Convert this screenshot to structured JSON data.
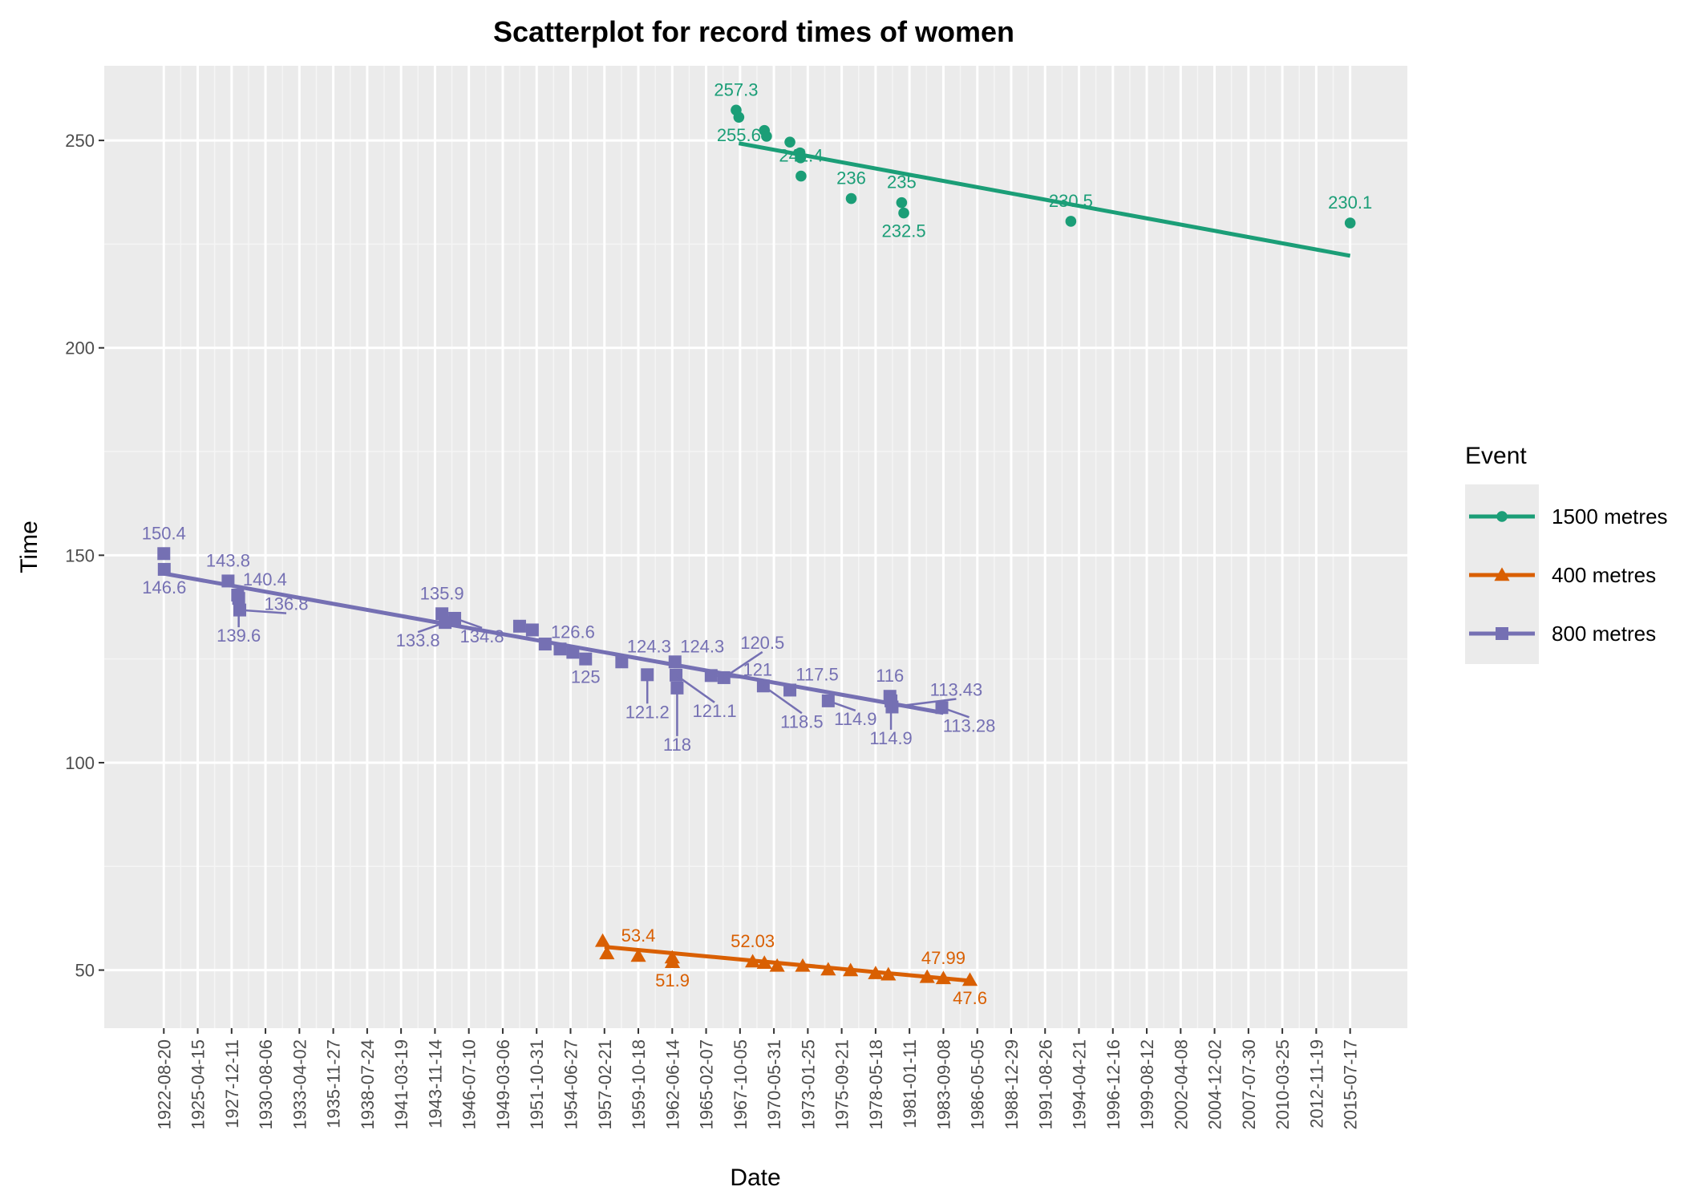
{
  "chart_data": {
    "type": "scatter",
    "title": "Scatterplot for record times of women",
    "xlabel": "Date",
    "ylabel": "Time",
    "y_ticks": [
      50,
      100,
      150,
      200,
      250
    ],
    "ylim": [
      36,
      268
    ],
    "x_ticks": [
      "1922-08-20",
      "1925-04-15",
      "1927-12-11",
      "1930-08-06",
      "1933-04-02",
      "1935-11-27",
      "1938-07-24",
      "1941-03-19",
      "1943-11-14",
      "1946-07-10",
      "1949-03-06",
      "1951-10-31",
      "1954-06-27",
      "1957-02-21",
      "1959-10-18",
      "1962-06-14",
      "1965-02-07",
      "1967-10-05",
      "1970-05-31",
      "1973-01-25",
      "1975-09-21",
      "1978-05-18",
      "1981-01-11",
      "1983-09-08",
      "1986-05-05",
      "1988-12-29",
      "1991-08-26",
      "1994-04-21",
      "1996-12-16",
      "1999-08-12",
      "2002-04-08",
      "2004-12-02",
      "2007-07-30",
      "2010-03-25",
      "2012-11-19",
      "2015-07-17"
    ],
    "xlim": [
      "1917-12-20",
      "2020-01-08"
    ],
    "legend": {
      "title": "Event",
      "position": "right"
    },
    "grid": true,
    "series": [
      {
        "name": "1500 metres",
        "color": "#1b9e77",
        "marker": "circle",
        "trend": [
          [
            "1967-09-01",
            249.3
          ],
          [
            "2015-07-17",
            222.2
          ]
        ],
        "points": [
          {
            "x": "1967-06-15",
            "y": 257.3,
            "label": "257.3"
          },
          {
            "x": "1967-09-01",
            "y": 255.6,
            "label": "255.6"
          },
          {
            "x": "1969-09-01",
            "y": 252.4
          },
          {
            "x": "1969-11-01",
            "y": 251.0
          },
          {
            "x": "1971-09-01",
            "y": 249.6
          },
          {
            "x": "1972-06-15",
            "y": 247.0
          },
          {
            "x": "1972-07-01",
            "y": 245.8
          },
          {
            "x": "1972-07-15",
            "y": 241.4,
            "label": "241.4"
          },
          {
            "x": "1976-06-20",
            "y": 236.0,
            "label": "236"
          },
          {
            "x": "1980-06-01",
            "y": 235.0,
            "label": "235"
          },
          {
            "x": "1980-08-01",
            "y": 232.5,
            "label": "232.5"
          },
          {
            "x": "1993-09-01",
            "y": 230.5,
            "label": "230.5"
          },
          {
            "x": "2015-07-17",
            "y": 230.1,
            "label": "230.1"
          }
        ]
      },
      {
        "name": "400 metres",
        "color": "#d95f02",
        "marker": "triangle",
        "trend": [
          [
            "1957-02-21",
            55.6
          ],
          [
            "1985-11-01",
            47.4
          ]
        ],
        "points": [
          {
            "x": "1957-01-01",
            "y": 57.0
          },
          {
            "x": "1957-05-01",
            "y": 54.0
          },
          {
            "x": "1959-10-18",
            "y": 53.4,
            "label": "53.4"
          },
          {
            "x": "1962-06-14",
            "y": 53.0
          },
          {
            "x": "1962-06-20",
            "y": 51.9,
            "label": "51.9"
          },
          {
            "x": "1968-10-01",
            "y": 52.03,
            "label": "52.03"
          },
          {
            "x": "1969-09-01",
            "y": 51.7
          },
          {
            "x": "1970-09-01",
            "y": 51.0
          },
          {
            "x": "1972-09-01",
            "y": 51.0
          },
          {
            "x": "1974-09-01",
            "y": 50.1
          },
          {
            "x": "1976-06-01",
            "y": 49.9
          },
          {
            "x": "1978-05-18",
            "y": 49.2
          },
          {
            "x": "1979-05-18",
            "y": 48.9
          },
          {
            "x": "1982-06-01",
            "y": 48.3
          },
          {
            "x": "1983-09-08",
            "y": 47.99,
            "label": "47.99"
          },
          {
            "x": "1985-10-06",
            "y": 47.6,
            "label": "47.6"
          }
        ]
      },
      {
        "name": "800 metres",
        "color": "#7570b3",
        "marker": "square",
        "trend": [
          [
            "1922-08-20",
            145.6
          ],
          [
            "1983-09-08",
            112.0
          ]
        ],
        "points": [
          {
            "x": "1922-08-20",
            "y": 150.4,
            "label": "150.4"
          },
          {
            "x": "1922-09-01",
            "y": 146.6,
            "label": "146.6"
          },
          {
            "x": "1927-09-01",
            "y": 143.8,
            "label": "143.8"
          },
          {
            "x": "1928-06-01",
            "y": 140.4,
            "label": "140.4"
          },
          {
            "x": "1928-07-01",
            "y": 139.6,
            "label": "139.6"
          },
          {
            "x": "1928-08-01",
            "y": 136.8,
            "label": "136.8"
          },
          {
            "x": "1944-06-01",
            "y": 135.9,
            "label": "135.9"
          },
          {
            "x": "1945-06-01",
            "y": 134.8,
            "label": "134.8"
          },
          {
            "x": "1944-09-01",
            "y": 133.8,
            "label": "133.8"
          },
          {
            "x": "1950-07-01",
            "y": 132.9
          },
          {
            "x": "1951-07-01",
            "y": 132.0
          },
          {
            "x": "1952-07-01",
            "y": 128.6
          },
          {
            "x": "1953-09-01",
            "y": 127.4
          },
          {
            "x": "1954-09-01",
            "y": 126.6,
            "label": "126.6"
          },
          {
            "x": "1955-09-01",
            "y": 125.0,
            "label": "125"
          },
          {
            "x": "1958-07-01",
            "y": 124.3,
            "label": "124.3"
          },
          {
            "x": "1960-07-01",
            "y": 121.2,
            "label": "121.2"
          },
          {
            "x": "1962-09-01",
            "y": 124.3,
            "label": "124.3"
          },
          {
            "x": "1962-10-01",
            "y": 121.1,
            "label": "121.1"
          },
          {
            "x": "1962-11-01",
            "y": 118.0,
            "label": "118"
          },
          {
            "x": "1965-07-01",
            "y": 121.0,
            "label": "121"
          },
          {
            "x": "1966-07-01",
            "y": 120.5,
            "label": "120.5"
          },
          {
            "x": "1969-08-01",
            "y": 118.5,
            "label": "118.5"
          },
          {
            "x": "1971-09-01",
            "y": 117.5,
            "label": "117.5"
          },
          {
            "x": "1974-09-01",
            "y": 114.9,
            "label": "114.9"
          },
          {
            "x": "1979-07-01",
            "y": 116.0,
            "label": "116"
          },
          {
            "x": "1979-08-01",
            "y": 114.9,
            "label": "114.9"
          },
          {
            "x": "1979-09-01",
            "y": 113.43,
            "label": "113.43"
          },
          {
            "x": "1983-07-26",
            "y": 113.28,
            "label": "113.28"
          }
        ]
      }
    ]
  }
}
